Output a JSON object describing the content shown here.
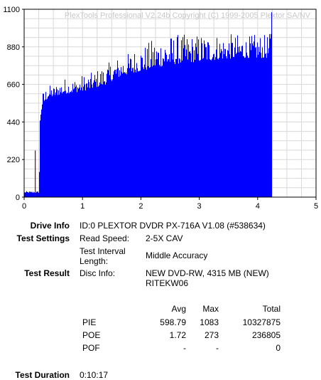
{
  "chart_data": {
    "type": "bar",
    "watermark": "PlexTools Professional V2.24b Copyright (C) 1999-2005 Plextor SA/NV",
    "xlim": [
      0,
      5
    ],
    "ylim": [
      0,
      1100
    ],
    "x_ticks": [
      "0",
      "1",
      "2",
      "3",
      "4",
      "5"
    ],
    "y_ticks": [
      "1100",
      "880",
      "660",
      "440",
      "220",
      "0"
    ],
    "grid": true,
    "series": [
      {
        "color": "#0000ff",
        "x": [
          0.0,
          0.25,
          0.27,
          0.3,
          0.4,
          0.5,
          0.6,
          0.7,
          0.8,
          0.9,
          1.0,
          1.1,
          1.2,
          1.3,
          1.4,
          1.5,
          1.6,
          1.7,
          1.8,
          1.9,
          2.0,
          2.1,
          2.2,
          2.3,
          2.4,
          2.5,
          2.6,
          2.7,
          2.8,
          2.9,
          3.0,
          3.1,
          3.2,
          3.3,
          3.4,
          3.5,
          3.6,
          3.7,
          3.8,
          3.9,
          4.0,
          4.1,
          4.2,
          4.23
        ],
        "values": [
          25,
          25,
          440,
          530,
          580,
          590,
          600,
          605,
          610,
          615,
          620,
          630,
          640,
          650,
          660,
          680,
          700,
          715,
          720,
          730,
          740,
          745,
          755,
          760,
          770,
          775,
          780,
          785,
          790,
          790,
          795,
          800,
          800,
          805,
          810,
          810,
          815,
          815,
          815,
          815,
          815,
          815,
          815,
          815
        ],
        "peak_values": [
          35,
          35,
          560,
          610,
          660,
          650,
          680,
          700,
          690,
          700,
          720,
          720,
          740,
          760,
          780,
          800,
          820,
          830,
          850,
          870,
          890,
          900,
          930,
          940,
          960,
          950,
          960,
          950,
          960,
          950,
          960,
          960,
          950,
          960,
          950,
          960,
          950,
          960,
          940,
          950,
          960,
          950,
          960,
          1083
        ]
      },
      {
        "color": "#8b0000",
        "x": [
          0.19
        ],
        "values": [
          273
        ]
      }
    ]
  },
  "info": {
    "drive_info_label": "Drive Info",
    "drive_info_value": "ID:0 PLEXTOR DVDR PX-716A V1.08 (#538634)",
    "test_settings_label": "Test Settings",
    "read_speed_label": "Read Speed:",
    "read_speed_value": "2-5X CAV",
    "interval_label_line1": "Test Interval",
    "interval_label_line2": "Length:",
    "interval_value": "Middle Accuracy",
    "test_result_label": "Test Result",
    "disc_info_label": "Disc Info:",
    "disc_info_line1": "NEW DVD-RW, 4315 MB (NEW)",
    "disc_info_line2": "RITEKW06",
    "duration_label": "Test Duration",
    "duration_value": "0:10:17"
  },
  "results": {
    "headers": [
      "Avg",
      "Max",
      "Total"
    ],
    "rows": [
      {
        "name": "PIE",
        "avg": "598.79",
        "max": "1083",
        "total": "10327875"
      },
      {
        "name": "POE",
        "avg": "1.72",
        "max": "273",
        "total": "236805"
      },
      {
        "name": "POF",
        "avg": "-",
        "max": "-",
        "total": "0"
      }
    ]
  }
}
